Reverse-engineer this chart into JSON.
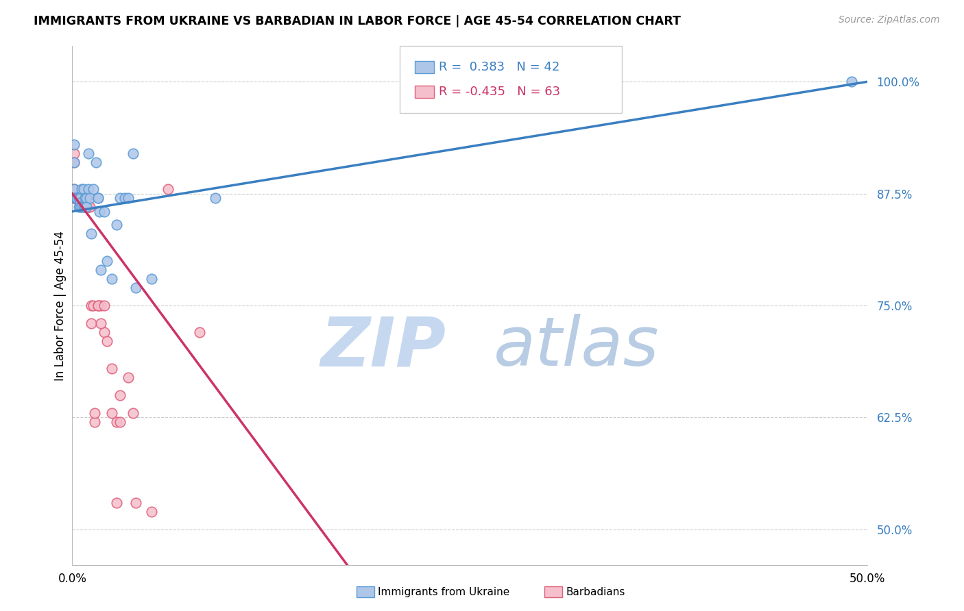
{
  "title": "IMMIGRANTS FROM UKRAINE VS BARBADIAN IN LABOR FORCE | AGE 45-54 CORRELATION CHART",
  "source": "Source: ZipAtlas.com",
  "ylabel": "In Labor Force | Age 45-54",
  "xlim": [
    0.0,
    0.5
  ],
  "ylim": [
    0.46,
    1.04
  ],
  "yticks": [
    0.5,
    0.625,
    0.75,
    0.875,
    1.0
  ],
  "ytick_labels": [
    "50.0%",
    "62.5%",
    "75.0%",
    "87.5%",
    "100.0%"
  ],
  "legend_r_ukraine": "0.383",
  "legend_n_ukraine": "42",
  "legend_r_barbadian": "-0.435",
  "legend_n_barbadian": "63",
  "ukraine_color": "#aec6e8",
  "ukraine_edge_color": "#5b9bd5",
  "barbadian_color": "#f5bfcc",
  "barbadian_edge_color": "#e0607a",
  "ukraine_line_color": "#3a7fc1",
  "barbadian_line_solid_color": "#cc3366",
  "barbadian_line_dash_color": "#e8a0b8",
  "watermark_zip_color": "#c5d8f0",
  "watermark_atlas_color": "#b8cce4",
  "ukraine_points_x": [
    0.001,
    0.001,
    0.001,
    0.002,
    0.002,
    0.003,
    0.003,
    0.004,
    0.004,
    0.005,
    0.005,
    0.005,
    0.006,
    0.006,
    0.007,
    0.007,
    0.008,
    0.008,
    0.009,
    0.009,
    0.01,
    0.01,
    0.011,
    0.012,
    0.013,
    0.015,
    0.016,
    0.016,
    0.017,
    0.018,
    0.02,
    0.022,
    0.025,
    0.028,
    0.03,
    0.033,
    0.035,
    0.038,
    0.04,
    0.05,
    0.09,
    0.49
  ],
  "ukraine_points_y": [
    0.93,
    0.91,
    0.88,
    0.87,
    0.87,
    0.87,
    0.87,
    0.87,
    0.86,
    0.87,
    0.865,
    0.86,
    0.88,
    0.86,
    0.88,
    0.86,
    0.87,
    0.86,
    0.87,
    0.86,
    0.92,
    0.88,
    0.87,
    0.83,
    0.88,
    0.91,
    0.87,
    0.87,
    0.855,
    0.79,
    0.855,
    0.8,
    0.78,
    0.84,
    0.87,
    0.87,
    0.87,
    0.92,
    0.77,
    0.78,
    0.87,
    1.0
  ],
  "barbadian_points_x": [
    0.001,
    0.001,
    0.001,
    0.001,
    0.001,
    0.001,
    0.002,
    0.002,
    0.002,
    0.002,
    0.002,
    0.003,
    0.003,
    0.003,
    0.003,
    0.003,
    0.004,
    0.004,
    0.004,
    0.004,
    0.005,
    0.005,
    0.005,
    0.005,
    0.006,
    0.006,
    0.006,
    0.006,
    0.007,
    0.007,
    0.007,
    0.008,
    0.008,
    0.008,
    0.009,
    0.009,
    0.01,
    0.01,
    0.011,
    0.012,
    0.013,
    0.014,
    0.016,
    0.018,
    0.02,
    0.022,
    0.025,
    0.028,
    0.03,
    0.035,
    0.038,
    0.012,
    0.014,
    0.016,
    0.018,
    0.02,
    0.025,
    0.028,
    0.03,
    0.04,
    0.05,
    0.06,
    0.08
  ],
  "barbadian_points_y": [
    0.92,
    0.91,
    0.88,
    0.87,
    0.87,
    0.87,
    0.87,
    0.87,
    0.87,
    0.87,
    0.87,
    0.87,
    0.87,
    0.87,
    0.87,
    0.87,
    0.87,
    0.87,
    0.87,
    0.87,
    0.87,
    0.87,
    0.87,
    0.87,
    0.87,
    0.87,
    0.87,
    0.87,
    0.87,
    0.87,
    0.87,
    0.87,
    0.86,
    0.86,
    0.87,
    0.86,
    0.86,
    0.86,
    0.86,
    0.75,
    0.75,
    0.62,
    0.75,
    0.75,
    0.72,
    0.71,
    0.68,
    0.62,
    0.65,
    0.67,
    0.63,
    0.73,
    0.63,
    0.75,
    0.73,
    0.75,
    0.63,
    0.53,
    0.62,
    0.53,
    0.52,
    0.88,
    0.72
  ],
  "ukraine_line_x0": 0.0,
  "ukraine_line_x1": 0.5,
  "ukraine_line_y0": 0.855,
  "ukraine_line_y1": 1.0,
  "barbadian_line_solid_x0": 0.0,
  "barbadian_line_solid_x1": 0.175,
  "barbadian_line_y0": 0.875,
  "barbadian_line_slope": -2.4,
  "barbadian_line_dash_x0": 0.175,
  "barbadian_line_dash_x1": 0.5
}
